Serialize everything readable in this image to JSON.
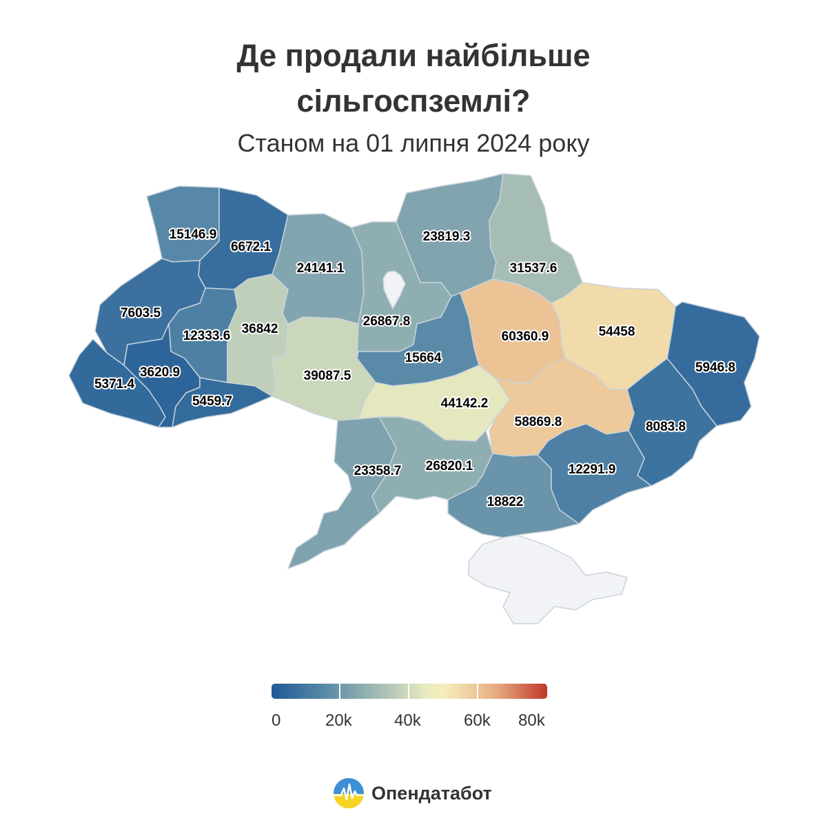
{
  "header": {
    "title_line1": "Де продали найбільше",
    "title_line2": "сільгоспземлі?",
    "subtitle": "Станом на 01 липня 2024 року"
  },
  "map": {
    "region_values": {
      "volyn": 15146.9,
      "rivne": 6672.1,
      "lviv": 7603.5,
      "ternopil": 12333.6,
      "zakarpattia": 5371.4,
      "ivano_frankivsk": 3620.9,
      "chernivtsi": 5459.7,
      "khmelnytskyi": 36842,
      "zhytomyr": 24141.1,
      "vinnytsia": 39087.5,
      "kyiv": 26867.8,
      "chernihiv": 23819.3,
      "sumy": 31537.6,
      "cherkasy": 15664,
      "poltava": 60360.9,
      "kharkiv": 54458,
      "luhansk": 5946.8,
      "kirovohrad": 44142.2,
      "dnipro": 58869.8,
      "donetsk": 8083.8,
      "odesa": 23358.7,
      "mykolaiv": 26820.1,
      "kherson": 18822,
      "zaporizhzhia": 12291.9
    },
    "region_labels": {
      "volyn": "15146.9",
      "rivne": "6672.1",
      "lviv": "7603.5",
      "ternopil": "12333.6",
      "zakarpattia": "5371.4",
      "ivano_frankivsk": "3620.9",
      "chernivtsi": "5459.7",
      "khmelnytskyi": "36842",
      "zhytomyr": "24141.1",
      "vinnytsia": "39087.5",
      "kyiv": "26867.8",
      "chernihiv": "23819.3",
      "sumy": "31537.6",
      "cherkasy": "15664",
      "poltava": "60360.9",
      "kharkiv": "54458",
      "luhansk": "5946.8",
      "kirovohrad": "44142.2",
      "dnipro": "58869.8",
      "donetsk": "8083.8",
      "odesa": "23358.7",
      "mykolaiv": "26820.1",
      "kherson": "18822",
      "zaporizhzhia": "12291.9"
    },
    "no_data_color": "#f1f3f6"
  },
  "legend": {
    "ticks": [
      "0",
      "20k",
      "40k",
      "60k",
      "80k"
    ],
    "min": 0,
    "max": 80000,
    "stops": [
      "#1f5a96",
      "#5b8ba8",
      "#a8bfb5",
      "#f8f5c2",
      "#e8b488",
      "#c0392b"
    ]
  },
  "brand": {
    "logo_text": "Опендатабот",
    "logo_colors": [
      "#3f8fd6",
      "#f5d423"
    ]
  }
}
